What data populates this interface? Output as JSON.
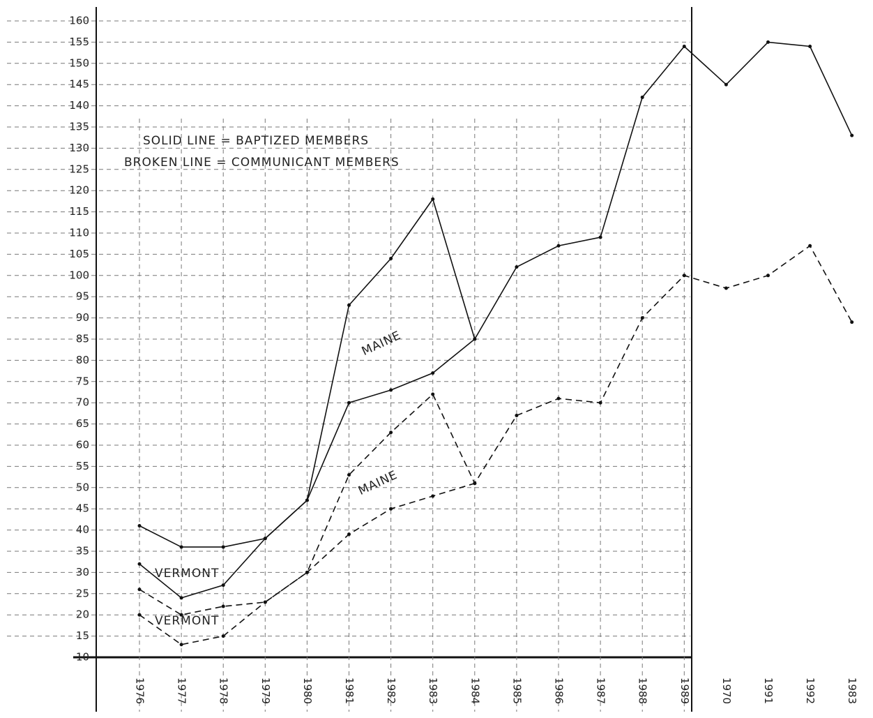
{
  "chart_data": {
    "type": "line",
    "annotations": [
      "SOLID LINE = BAPTIZED MEMBERS",
      "BROKEN LINE = COMMUNICANT MEMBERS",
      "MAINE",
      "MAINE",
      "VERMONT",
      "VERMONT"
    ],
    "categories": [
      "1976",
      "1977",
      "1978",
      "1979",
      "1980",
      "1981",
      "1982",
      "1983",
      "1984",
      "1985",
      "1986",
      "1987",
      "1988",
      "1989",
      "1970",
      "1991",
      "1992",
      "1983"
    ],
    "series": [
      {
        "color": "#111",
        "dash": false,
        "values": [
          41,
          36,
          36,
          38,
          47,
          93,
          104,
          118,
          85,
          102,
          107,
          109,
          142,
          154,
          145,
          155,
          154,
          133
        ]
      },
      {
        "color": "#111",
        "dash": false,
        "values": [
          32,
          24,
          27,
          38,
          47,
          70,
          73,
          77,
          85,
          null,
          null,
          null,
          null,
          null,
          null,
          null,
          null,
          null
        ]
      },
      {
        "color": "#111",
        "dash": true,
        "values": [
          26,
          20,
          22,
          23,
          30,
          53,
          63,
          72,
          51,
          67,
          71,
          70,
          90,
          100,
          97,
          100,
          107,
          89
        ]
      },
      {
        "color": "#111",
        "dash": true,
        "values": [
          20,
          13,
          15,
          23,
          30,
          39,
          45,
          48,
          51,
          null,
          null,
          null,
          null,
          null,
          null,
          null,
          null,
          null
        ]
      }
    ],
    "ylim": [
      10,
      160
    ],
    "yticks": [
      10,
      15,
      20,
      25,
      30,
      35,
      40,
      45,
      50,
      55,
      60,
      65,
      70,
      75,
      80,
      85,
      90,
      95,
      100,
      105,
      110,
      115,
      120,
      125,
      130,
      135,
      140,
      145,
      150,
      155,
      160
    ],
    "grid": true
  }
}
